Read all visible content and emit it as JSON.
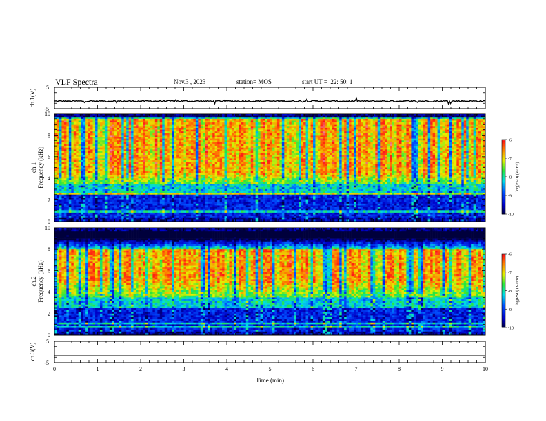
{
  "header": {
    "title": "VLF Spectra",
    "date": "Nov.3 , 2023",
    "station": "station= MOS",
    "start_ut": "start UT =  22: 50: 1"
  },
  "chart_data": [
    {
      "type": "line",
      "name": "ch1-waveform",
      "ylabel": "ch.1(V)",
      "ylim": [
        -5,
        5
      ],
      "yticks": [
        "5",
        "-5"
      ],
      "series": [
        {
          "values": [
            -1.5,
            -1.5
          ]
        }
      ]
    },
    {
      "type": "heatmap",
      "name": "ch1-spectrogram",
      "ylabel": "ch.1\nFrequency (kHz)",
      "ylim": [
        0,
        10
      ],
      "yticks": [
        "0",
        "2",
        "4",
        "6",
        "8",
        "10"
      ],
      "colorbar": {
        "label": "log(PSD) (V²/Hz)",
        "range": [
          -10,
          -6
        ],
        "ticks": [
          "-6",
          "-7",
          "-8",
          "-9",
          "-10"
        ]
      },
      "intense_band_khz": [
        4.5,
        9.5
      ]
    },
    {
      "type": "heatmap",
      "name": "ch2-spectrogram",
      "ylabel": "ch.2\nFrequency (kHz)",
      "ylim": [
        0,
        10
      ],
      "yticks": [
        "0",
        "2",
        "4",
        "6",
        "8",
        "10"
      ],
      "colorbar": {
        "label": "log(PSD) (V²/Hz)",
        "range": [
          -10,
          -6
        ],
        "ticks": [
          "-6",
          "-7",
          "-8",
          "-9",
          "-10"
        ]
      },
      "intense_band_khz": [
        5,
        8
      ]
    },
    {
      "type": "line",
      "name": "ch3-waveform",
      "ylabel": "ch.3(V)",
      "ylim": [
        -5,
        5
      ],
      "yticks": [
        "5",
        "-5"
      ],
      "series": [
        {
          "values": [
            -1.8,
            -1.8
          ]
        }
      ]
    }
  ],
  "xaxis": {
    "label": "Time (min)",
    "xlim": [
      0,
      10
    ],
    "ticks": [
      "0",
      "1",
      "2",
      "3",
      "4",
      "5",
      "6",
      "7",
      "8",
      "9",
      "10"
    ]
  }
}
